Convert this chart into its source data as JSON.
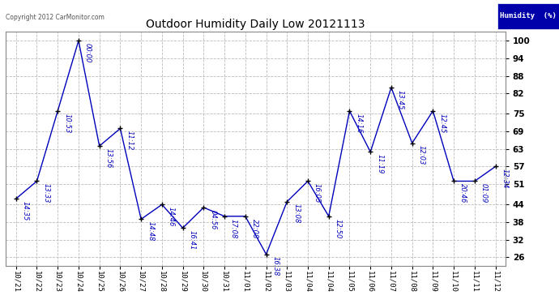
{
  "title": "Outdoor Humidity Daily Low 20121113",
  "copyright_text": "Copyright 2012 CarMonitor.com",
  "background_color": "#ffffff",
  "plot_bg_color": "#ffffff",
  "grid_color": "#bbbbbb",
  "line_color": "#0000bb",
  "marker_color": "#000000",
  "x_labels": [
    "10/21",
    "10/22",
    "10/23",
    "10/24",
    "10/25",
    "10/26",
    "10/27",
    "10/28",
    "10/29",
    "10/30",
    "10/31",
    "11/01",
    "11/02",
    "11/03",
    "11/04",
    "11/04",
    "11/05",
    "11/06",
    "11/07",
    "11/08",
    "11/09",
    "11/10",
    "11/11",
    "11/12"
  ],
  "y_values": [
    46,
    52,
    76,
    100,
    64,
    70,
    39,
    44,
    36,
    43,
    40,
    40,
    27,
    45,
    52,
    40,
    76,
    62,
    84,
    65,
    76,
    52,
    52,
    57
  ],
  "annotations": [
    "14:35",
    "13:33",
    "10:53",
    "00:00",
    "13:56",
    "11:12",
    "14:48",
    "14:46",
    "16:41",
    "04:56",
    "17:08",
    "22:08",
    "16:38",
    "13:08",
    "16:05",
    "12:50",
    "14:16",
    "11:19",
    "13:45",
    "12:03",
    "12:45",
    "20:46",
    "01:09",
    "12:34"
  ],
  "yticks": [
    26,
    32,
    38,
    44,
    51,
    57,
    63,
    69,
    75,
    82,
    88,
    94,
    100
  ],
  "ylim": [
    23,
    103
  ],
  "legend_label": "Humidity  (%)",
  "legend_bg": "#0000aa",
  "legend_text_color": "#ffffff"
}
